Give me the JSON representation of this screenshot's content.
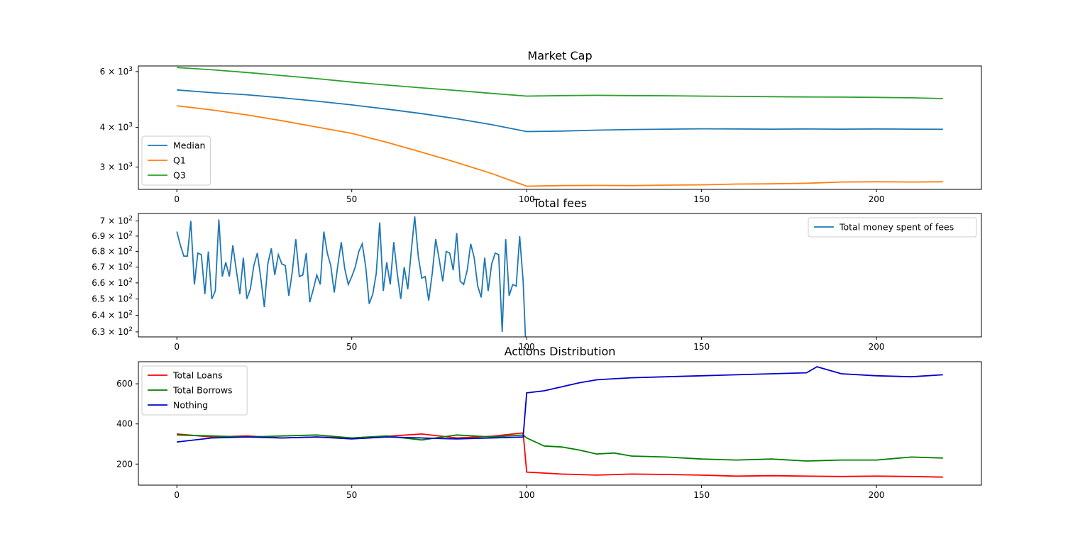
{
  "chart_data": [
    {
      "type": "line",
      "title": "Market Cap",
      "yscale": "log",
      "ylim": [
        2550,
        6250
      ],
      "xlim": [
        -11,
        230
      ],
      "xticks": [
        "0",
        "50",
        "100",
        "150",
        "200"
      ],
      "yticks": [
        {
          "value": 6000,
          "mantissa": "6",
          "base": "10",
          "exp": "3"
        },
        {
          "value": 4000,
          "mantissa": "4",
          "base": "10",
          "exp": "3"
        },
        {
          "value": 3000,
          "mantissa": "3",
          "base": "10",
          "exp": "3"
        }
      ],
      "legend": "lower-left",
      "series": [
        {
          "name": "Median",
          "color": "#1f77b4",
          "points": [
            [
              0,
              5250
            ],
            [
              10,
              5150
            ],
            [
              20,
              5070
            ],
            [
              30,
              4960
            ],
            [
              40,
              4840
            ],
            [
              50,
              4710
            ],
            [
              60,
              4570
            ],
            [
              70,
              4420
            ],
            [
              80,
              4260
            ],
            [
              90,
              4080
            ],
            [
              100,
              3880
            ],
            [
              110,
              3895
            ],
            [
              120,
              3920
            ],
            [
              130,
              3940
            ],
            [
              140,
              3950
            ],
            [
              150,
              3960
            ],
            [
              160,
              3955
            ],
            [
              170,
              3950
            ],
            [
              180,
              3955
            ],
            [
              190,
              3950
            ],
            [
              200,
              3955
            ],
            [
              210,
              3950
            ],
            [
              219,
              3945
            ]
          ]
        },
        {
          "name": "Q1",
          "color": "#ff7f0e",
          "points": [
            [
              0,
              4680
            ],
            [
              10,
              4540
            ],
            [
              20,
              4380
            ],
            [
              30,
              4200
            ],
            [
              40,
              4010
            ],
            [
              50,
              3830
            ],
            [
              60,
              3590
            ],
            [
              70,
              3340
            ],
            [
              80,
              3100
            ],
            [
              90,
              2860
            ],
            [
              100,
              2610
            ],
            [
              110,
              2620
            ],
            [
              120,
              2625
            ],
            [
              130,
              2620
            ],
            [
              140,
              2630
            ],
            [
              150,
              2635
            ],
            [
              160,
              2650
            ],
            [
              170,
              2655
            ],
            [
              180,
              2665
            ],
            [
              190,
              2690
            ],
            [
              200,
              2695
            ],
            [
              210,
              2690
            ],
            [
              219,
              2695
            ]
          ]
        },
        {
          "name": "Q3",
          "color": "#2ca02c",
          "points": [
            [
              0,
              6180
            ],
            [
              10,
              6080
            ],
            [
              20,
              5960
            ],
            [
              30,
              5830
            ],
            [
              40,
              5700
            ],
            [
              50,
              5560
            ],
            [
              60,
              5440
            ],
            [
              70,
              5330
            ],
            [
              80,
              5230
            ],
            [
              90,
              5120
            ],
            [
              100,
              5020
            ],
            [
              110,
              5040
            ],
            [
              120,
              5050
            ],
            [
              130,
              5040
            ],
            [
              140,
              5035
            ],
            [
              150,
              5020
            ],
            [
              160,
              5010
            ],
            [
              170,
              5000
            ],
            [
              180,
              4990
            ],
            [
              190,
              4985
            ],
            [
              200,
              4975
            ],
            [
              210,
              4960
            ],
            [
              219,
              4930
            ]
          ]
        }
      ]
    },
    {
      "type": "line",
      "title": "Total fees",
      "yscale": "log",
      "ylim": [
        627,
        705
      ],
      "xlim": [
        -11,
        230
      ],
      "xticks": [
        "0",
        "50",
        "100",
        "150",
        "200"
      ],
      "yticks": [
        {
          "value": 700,
          "mantissa": "7",
          "base": "10",
          "exp": "2"
        },
        {
          "value": 690,
          "mantissa": "6.9",
          "base": "10",
          "exp": "2"
        },
        {
          "value": 680,
          "mantissa": "6.8",
          "base": "10",
          "exp": "2"
        },
        {
          "value": 670,
          "mantissa": "6.7",
          "base": "10",
          "exp": "2"
        },
        {
          "value": 660,
          "mantissa": "6.6",
          "base": "10",
          "exp": "2"
        },
        {
          "value": 650,
          "mantissa": "6.5",
          "base": "10",
          "exp": "2"
        },
        {
          "value": 640,
          "mantissa": "6.4",
          "base": "10",
          "exp": "2"
        },
        {
          "value": 630,
          "mantissa": "6.3",
          "base": "10",
          "exp": "2"
        }
      ],
      "legend": "upper-right",
      "series": [
        {
          "name": "Total money spent of fees",
          "color": "#1f77b4",
          "y": [
            693,
            684,
            677,
            677,
            700,
            659,
            679,
            678,
            653,
            680,
            650,
            655,
            701,
            664,
            673,
            664,
            684,
            668,
            653,
            676,
            650,
            656,
            671,
            679,
            663,
            645,
            672,
            682,
            665,
            678,
            672,
            671,
            652,
            667,
            688,
            664,
            665,
            679,
            648,
            656,
            665,
            659,
            693,
            679,
            671,
            654,
            671,
            686,
            669,
            659,
            664,
            670,
            680,
            685,
            670,
            647,
            653,
            666,
            699,
            655,
            673,
            659,
            686,
            666,
            650,
            670,
            656,
            680,
            703,
            677,
            663,
            664,
            649,
            666,
            688,
            675,
            661,
            680,
            679,
            668,
            692,
            661,
            659,
            668,
            685,
            676,
            658,
            651,
            676,
            655,
            672,
            679,
            678,
            630,
            688,
            652,
            659,
            658,
            690,
            661,
            609
          ]
        }
      ]
    },
    {
      "type": "line",
      "title": "Actions Distribution",
      "yscale": "linear",
      "ylim": [
        95,
        710
      ],
      "xlim": [
        -11,
        230
      ],
      "xticks": [
        "0",
        "50",
        "100",
        "150",
        "200"
      ],
      "yticks": [
        {
          "value": 600,
          "label": "600"
        },
        {
          "value": 400,
          "label": "400"
        },
        {
          "value": 200,
          "label": "200"
        }
      ],
      "legend": "upper-left",
      "series": [
        {
          "name": "Total Loans",
          "color": "#ff0000",
          "points": [
            [
              0,
              350
            ],
            [
              10,
              335
            ],
            [
              20,
              340
            ],
            [
              30,
              330
            ],
            [
              40,
              335
            ],
            [
              50,
              330
            ],
            [
              60,
              338
            ],
            [
              70,
              350
            ],
            [
              80,
              330
            ],
            [
              90,
              338
            ],
            [
              99,
              355
            ],
            [
              100,
              160
            ],
            [
              110,
              150
            ],
            [
              120,
              145
            ],
            [
              130,
              150
            ],
            [
              140,
              148
            ],
            [
              150,
              145
            ],
            [
              160,
              140
            ],
            [
              170,
              142
            ],
            [
              180,
              140
            ],
            [
              190,
              138
            ],
            [
              200,
              140
            ],
            [
              210,
              138
            ],
            [
              219,
              135
            ]
          ]
        },
        {
          "name": "Total Borrows",
          "color": "#008000",
          "points": [
            [
              0,
              345
            ],
            [
              10,
              340
            ],
            [
              20,
              335
            ],
            [
              30,
              340
            ],
            [
              40,
              345
            ],
            [
              50,
              330
            ],
            [
              60,
              340
            ],
            [
              70,
              320
            ],
            [
              80,
              345
            ],
            [
              90,
              335
            ],
            [
              99,
              345
            ],
            [
              100,
              330
            ],
            [
              105,
              290
            ],
            [
              110,
              285
            ],
            [
              115,
              270
            ],
            [
              120,
              250
            ],
            [
              125,
              255
            ],
            [
              130,
              240
            ],
            [
              140,
              235
            ],
            [
              150,
              225
            ],
            [
              160,
              220
            ],
            [
              170,
              225
            ],
            [
              180,
              215
            ],
            [
              190,
              220
            ],
            [
              200,
              220
            ],
            [
              210,
              235
            ],
            [
              219,
              230
            ]
          ]
        },
        {
          "name": "Nothing",
          "color": "#0000cc",
          "points": [
            [
              0,
              310
            ],
            [
              10,
              330
            ],
            [
              20,
              335
            ],
            [
              30,
              330
            ],
            [
              40,
              335
            ],
            [
              50,
              325
            ],
            [
              60,
              335
            ],
            [
              70,
              330
            ],
            [
              80,
              325
            ],
            [
              90,
              330
            ],
            [
              99,
              335
            ],
            [
              100,
              555
            ],
            [
              105,
              565
            ],
            [
              110,
              585
            ],
            [
              115,
              605
            ],
            [
              120,
              620
            ],
            [
              125,
              625
            ],
            [
              130,
              630
            ],
            [
              140,
              635
            ],
            [
              150,
              640
            ],
            [
              160,
              645
            ],
            [
              170,
              650
            ],
            [
              180,
              655
            ],
            [
              183,
              685
            ],
            [
              190,
              650
            ],
            [
              200,
              640
            ],
            [
              210,
              635
            ],
            [
              219,
              645
            ]
          ]
        }
      ]
    }
  ]
}
